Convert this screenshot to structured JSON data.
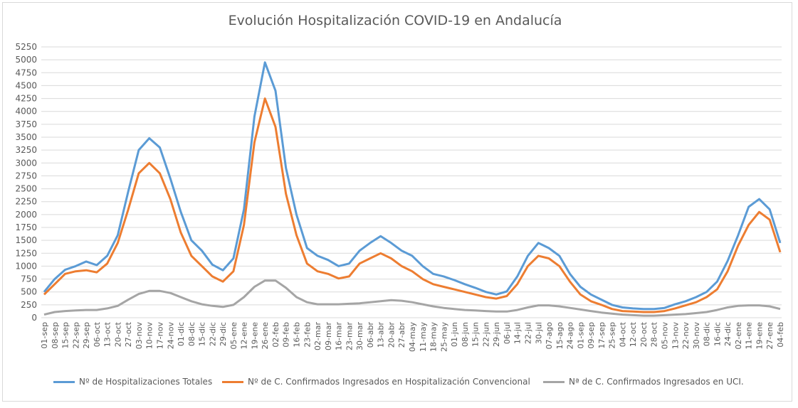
{
  "chart_data": {
    "type": "line",
    "title": "Evolución Hospitalización COVID-19 en Andalucía",
    "xlabel": "",
    "ylabel": "",
    "ylim": [
      0,
      5250
    ],
    "yticks": [
      0,
      250,
      500,
      750,
      1000,
      1250,
      1500,
      1750,
      2000,
      2250,
      2500,
      2750,
      3000,
      3250,
      3500,
      3750,
      4000,
      4250,
      4500,
      4750,
      5000,
      5250
    ],
    "grid": true,
    "legend_position": "bottom",
    "categories": [
      "01-sep",
      "08-sep",
      "15-sep",
      "22-sep",
      "29-sep",
      "06-oct",
      "13-oct",
      "20-oct",
      "27-oct",
      "03-nov",
      "10-nov",
      "17-nov",
      "24-nov",
      "01-dic",
      "08-dic",
      "15-dic",
      "22-dic",
      "29-dic",
      "05-ene",
      "12-ene",
      "19-ene",
      "26-ene",
      "02-feb",
      "09-feb",
      "16-feb",
      "23-feb",
      "02-mar",
      "09-mar",
      "16-mar",
      "23-mar",
      "30-mar",
      "06-abr",
      "13-abr",
      "20-abr",
      "27-abr",
      "04-may",
      "11-may",
      "18-may",
      "25-may",
      "01-jun",
      "08-jun",
      "15-jun",
      "22-jun",
      "29-jun",
      "06-jul",
      "14-jul",
      "22-jul",
      "30-jul",
      "07-ago",
      "15-ago",
      "24-ago",
      "01-sep",
      "09-sep",
      "17-sep",
      "25-sep",
      "04-oct",
      "12-oct",
      "20-oct",
      "28-oct",
      "05-nov",
      "13-nov",
      "22-nov",
      "30-nov",
      "08-dic",
      "16-dic",
      "24-dic",
      "02-ene",
      "11-ene",
      "19-ene",
      "27-ene",
      "04-feb"
    ],
    "series": [
      {
        "name": "Nº de Hospitalizaciones Totales",
        "color": "#5b9bd5",
        "values": [
          500,
          750,
          930,
          1000,
          1090,
          1020,
          1200,
          1600,
          2450,
          3250,
          3480,
          3300,
          2700,
          2050,
          1500,
          1300,
          1030,
          920,
          1150,
          2100,
          3900,
          4950,
          4400,
          2900,
          2000,
          1350,
          1200,
          1120,
          1000,
          1050,
          1300,
          1450,
          1580,
          1450,
          1300,
          1200,
          1000,
          850,
          800,
          730,
          650,
          580,
          500,
          450,
          510,
          800,
          1200,
          1450,
          1350,
          1200,
          850,
          600,
          450,
          350,
          250,
          200,
          180,
          170,
          170,
          190,
          260,
          320,
          400,
          500,
          700,
          1100,
          1600,
          2150,
          2300,
          2100,
          1450
        ]
      },
      {
        "name": "Nº de C. Confirmados Ingresados en Hospitalización Convencional",
        "color": "#ed7d31",
        "values": [
          450,
          650,
          850,
          900,
          920,
          880,
          1050,
          1450,
          2100,
          2800,
          3000,
          2800,
          2300,
          1650,
          1200,
          1000,
          800,
          700,
          900,
          1800,
          3400,
          4250,
          3700,
          2400,
          1600,
          1050,
          900,
          850,
          760,
          800,
          1050,
          1150,
          1250,
          1150,
          1000,
          900,
          750,
          650,
          600,
          550,
          500,
          450,
          400,
          370,
          420,
          650,
          1000,
          1200,
          1150,
          1000,
          700,
          450,
          320,
          250,
          170,
          130,
          120,
          110,
          110,
          130,
          180,
          240,
          300,
          400,
          550,
          900,
          1400,
          1800,
          2050,
          1900,
          1270
        ]
      },
      {
        "name": "Nª de C. Confirmados Ingresados en UCI.",
        "color": "#a5a5a5",
        "values": [
          60,
          110,
          130,
          140,
          150,
          150,
          180,
          230,
          350,
          460,
          520,
          520,
          480,
          400,
          320,
          260,
          230,
          210,
          250,
          400,
          600,
          720,
          720,
          580,
          400,
          300,
          260,
          260,
          260,
          270,
          280,
          300,
          320,
          340,
          330,
          300,
          260,
          220,
          190,
          170,
          150,
          140,
          130,
          120,
          120,
          150,
          200,
          240,
          240,
          220,
          190,
          160,
          130,
          100,
          80,
          60,
          50,
          40,
          40,
          50,
          60,
          70,
          90,
          110,
          150,
          200,
          230,
          240,
          240,
          220,
          170
        ]
      }
    ]
  }
}
